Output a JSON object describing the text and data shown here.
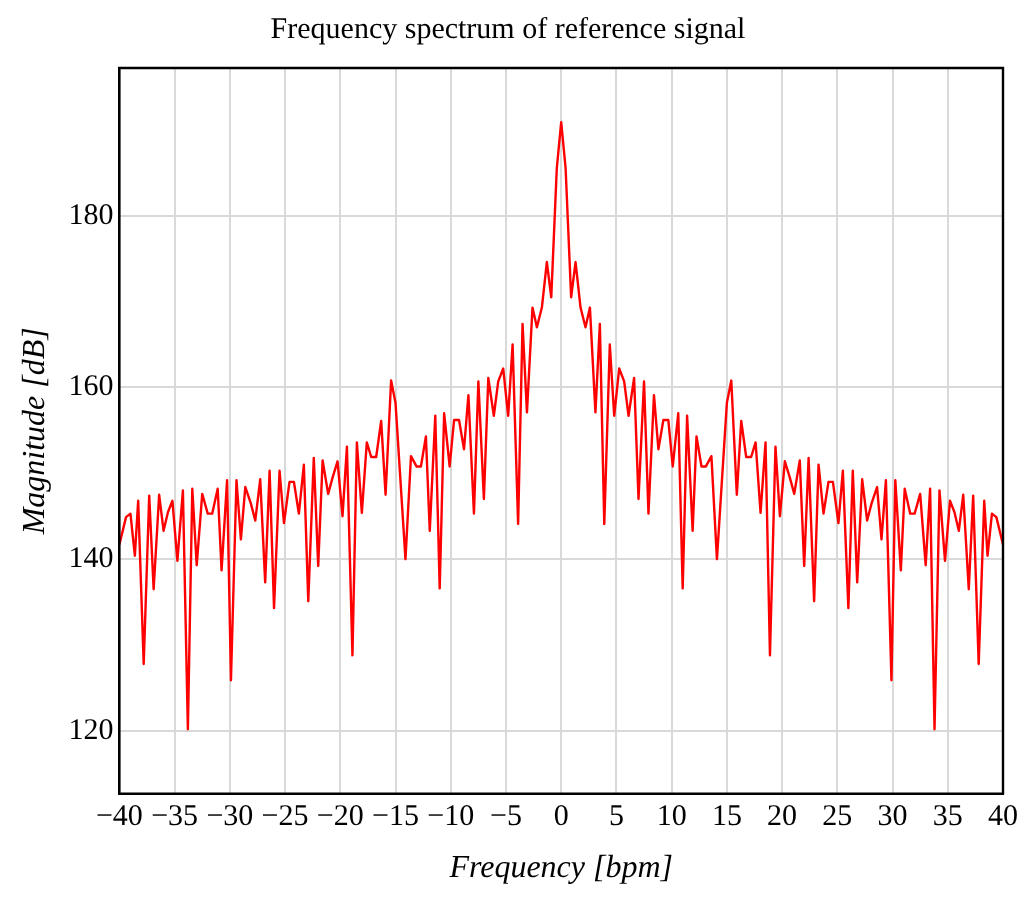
{
  "chart_data": {
    "type": "line",
    "title": "Frequency spectrum of reference signal",
    "xlabel": "Frequency [bpm]",
    "ylabel": "Magnitude [dB]",
    "xlim": [
      -40,
      40
    ],
    "xticks": [
      -40,
      -35,
      -30,
      -25,
      -20,
      -15,
      -10,
      -5,
      0,
      5,
      10,
      15,
      20,
      25,
      30,
      35,
      40
    ],
    "ylim": [
      112.7,
      197.2
    ],
    "yticks": [
      120,
      140,
      160,
      180
    ],
    "grid": true,
    "marker": "none",
    "line_style": "solid",
    "series": [
      {
        "color": "#ff0000",
        "x": [
          -40,
          -39.4,
          -39,
          -38.6,
          -38.3,
          -37.8,
          -37.3,
          -36.9,
          -36.4,
          -36,
          -35.6,
          -35.2,
          -34.75,
          -34.25,
          -33.8,
          -33.4,
          -33,
          -32.5,
          -32,
          -31.6,
          -31.1,
          -30.75,
          -30.25,
          -29.9,
          -29.4,
          -29,
          -28.6,
          -28.1,
          -27.7,
          -27.25,
          -26.8,
          -26.4,
          -26,
          -25.5,
          -25.1,
          -24.6,
          -24.2,
          -23.75,
          -23.3,
          -22.9,
          -22.4,
          -22,
          -21.6,
          -21.1,
          -20.7,
          -20.25,
          -19.8,
          -19.4,
          -18.9,
          -18.5,
          -18.05,
          -17.6,
          -17.2,
          -16.75,
          -16.3,
          -15.9,
          -15.4,
          -15,
          -14.1,
          -13.6,
          -13.1,
          -12.7,
          -12.25,
          -11.9,
          -11.4,
          -11,
          -10.6,
          -10.1,
          -9.7,
          -9.25,
          -8.8,
          -8.4,
          -7.9,
          -7.5,
          -7,
          -6.6,
          -6.1,
          -5.7,
          -5.25,
          -4.8,
          -4.4,
          -3.9,
          -3.5,
          -3.1,
          -2.6,
          -2.2,
          -1.75,
          -1.3,
          -0.9,
          -0.4,
          0,
          0.4,
          0.9,
          1.3,
          1.75,
          2.2,
          2.6,
          3.1,
          3.5,
          3.9,
          4.4,
          4.8,
          5.25,
          5.7,
          6.1,
          6.6,
          7,
          7.5,
          7.9,
          8.4,
          8.8,
          9.25,
          9.7,
          10.1,
          10.6,
          11,
          11.4,
          11.9,
          12.25,
          12.7,
          13.1,
          13.6,
          14.1,
          15,
          15.4,
          15.9,
          16.3,
          16.75,
          17.2,
          17.6,
          18.05,
          18.5,
          18.9,
          19.4,
          19.8,
          20.25,
          20.7,
          21.1,
          21.6,
          22,
          22.4,
          22.9,
          23.3,
          23.75,
          24.2,
          24.6,
          25.1,
          25.5,
          26,
          26.4,
          26.8,
          27.25,
          27.7,
          28.1,
          28.6,
          29,
          29.4,
          29.9,
          30.25,
          30.75,
          31.1,
          31.6,
          32,
          32.5,
          33,
          33.4,
          33.8,
          34.25,
          34.75,
          35.2,
          35.6,
          36,
          36.4,
          36.9,
          37.3,
          37.8,
          38.3,
          38.6,
          39,
          39.4,
          40
        ],
        "values": [
          141.7,
          144.9,
          145.3,
          140.4,
          146.8,
          127.8,
          147.4,
          136.5,
          147.5,
          143.3,
          145.5,
          146.8,
          139.8,
          148,
          120.2,
          148.2,
          139.3,
          147.6,
          145.3,
          145.3,
          148.2,
          138.7,
          149.2,
          125.9,
          149.2,
          142.3,
          148.4,
          146.5,
          144.5,
          149.3,
          137.3,
          150.3,
          134.3,
          150.3,
          144.2,
          149,
          149,
          145.3,
          151,
          135.1,
          151.8,
          139.2,
          151.5,
          147.6,
          149.5,
          151.4,
          145,
          153.1,
          128.8,
          153.6,
          145.4,
          153.6,
          151.9,
          151.9,
          156.1,
          147.5,
          160.8,
          158.2,
          140,
          152,
          150.8,
          150.8,
          154.3,
          143.3,
          156.7,
          136.6,
          157,
          150.8,
          156.2,
          156.2,
          152.8,
          159.1,
          145.3,
          160.7,
          147,
          161.1,
          156.7,
          160.7,
          162.2,
          156.7,
          165,
          144.1,
          167.4,
          157.1,
          169.3,
          167,
          169.3,
          174.6,
          170.5,
          185.5,
          190.9,
          185.5,
          170.5,
          174.6,
          169.3,
          167,
          169.3,
          157.1,
          167.4,
          144.1,
          165,
          156.7,
          162.2,
          160.7,
          156.7,
          161.1,
          147,
          160.7,
          145.3,
          159.1,
          152.8,
          156.2,
          156.2,
          150.8,
          157,
          136.6,
          156.7,
          143.3,
          154.3,
          150.8,
          150.8,
          152,
          140,
          158.2,
          160.8,
          147.5,
          156.1,
          151.9,
          151.9,
          153.6,
          145.4,
          153.6,
          128.8,
          153.1,
          145,
          151.4,
          149.5,
          147.6,
          151.5,
          139.2,
          151.8,
          135.1,
          151,
          145.3,
          149,
          149,
          144.2,
          150.3,
          134.3,
          150.3,
          137.3,
          149.3,
          144.5,
          146.5,
          148.4,
          142.3,
          149.2,
          125.9,
          149.2,
          138.7,
          148.2,
          145.3,
          145.3,
          147.6,
          139.3,
          148.2,
          120.2,
          148,
          139.8,
          146.8,
          145.5,
          143.3,
          147.5,
          136.5,
          147.4,
          127.8,
          146.8,
          140.4,
          145.3,
          144.9,
          141.7
        ]
      }
    ]
  }
}
